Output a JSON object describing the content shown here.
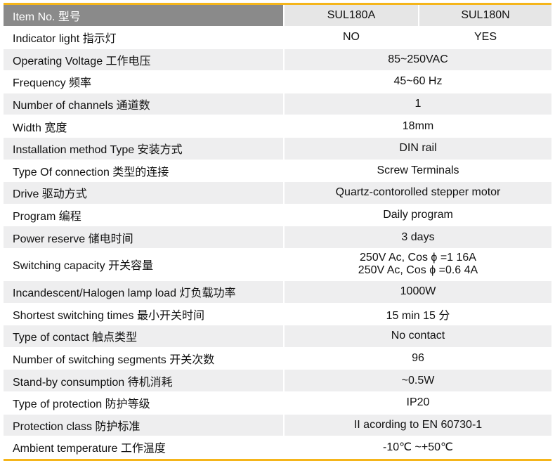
{
  "header": {
    "label": "Item No. 型号",
    "models": [
      "SUL180A",
      "SUL180N"
    ]
  },
  "rows": [
    {
      "label": "Indicator light 指示灯",
      "values": [
        "NO",
        "YES"
      ]
    },
    {
      "label": "Operating Voltage 工作电压",
      "value": "85~250VAC"
    },
    {
      "label": "Frequency  频率",
      "value": "45~60 Hz"
    },
    {
      "label": "Number of channels 通道数",
      "value": "1"
    },
    {
      "label": "Width 宽度",
      "value": "18mm"
    },
    {
      "label": "Installation method Type 安装方式",
      "value": "DIN rail"
    },
    {
      "label": "Type Of connection 类型的连接",
      "value": "Screw Terminals"
    },
    {
      "label": "Drive 驱动方式",
      "value": "Quartz-contorolled stepper motor"
    },
    {
      "label": "Program 编程",
      "value": "Daily program"
    },
    {
      "label": "Power reserve 储电时间",
      "value": "3 days"
    },
    {
      "label": "Switching capacity 开关容量",
      "value": "250V Ac, Cos ϕ =1 16A",
      "value2": "250V Ac, Cos ϕ =0.6 4A"
    },
    {
      "label": "Incandescent/Halogen lamp load 灯负载功率",
      "value": "1000W"
    },
    {
      "label": "Shortest switching times 最小开关时间",
      "value": "15 min 15 分"
    },
    {
      "label": "Type of contact 触点类型",
      "value": "No contact"
    },
    {
      "label": "Number of switching segments 开关次数",
      "value": "96"
    },
    {
      "label": "Stand-by consumption 待机消耗",
      "value": "~0.5W"
    },
    {
      "label": "Type of protection 防护等级",
      "value": "IP20"
    },
    {
      "label": "Protection class 防护标准",
      "value": "II acording to EN 60730-1"
    },
    {
      "label": "Ambient temperature 工作温度",
      "value": "-10℃ ~+50℃"
    }
  ],
  "colors": {
    "accent": "#f5b51a",
    "header_bg": "#8a8a8a",
    "stripe": "#eeeeef"
  }
}
